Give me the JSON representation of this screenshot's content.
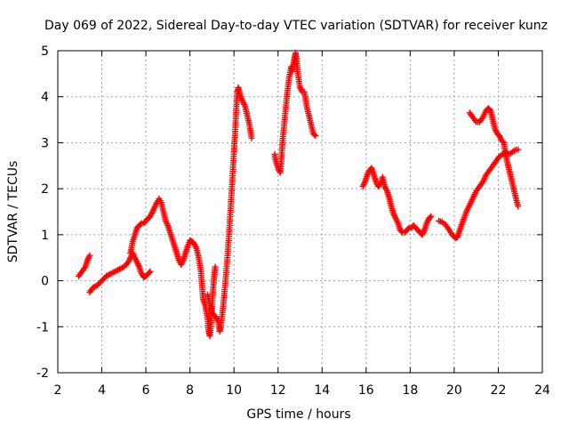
{
  "chart_data": {
    "type": "scatter",
    "title": "Day 069 of 2022, Sidereal Day-to-day VTEC variation (SDTVAR) for receiver kunz",
    "xlabel": "GPS time / hours",
    "ylabel": "SDTVAR / TECUs",
    "xlim": [
      2,
      24
    ],
    "ylim": [
      -2,
      5
    ],
    "xticks": [
      "2",
      "4",
      "6",
      "8",
      "10",
      "12",
      "14",
      "16",
      "18",
      "20",
      "22",
      "24"
    ],
    "yticks": [
      "-2",
      "-1",
      "0",
      "1",
      "2",
      "3",
      "4",
      "5"
    ],
    "grid": true,
    "marker": "plus",
    "series_color": "#ff0000",
    "segments": [
      {
        "points": [
          [
            2.95,
            0.1
          ],
          [
            3.1,
            0.2
          ],
          [
            3.25,
            0.3
          ],
          [
            3.35,
            0.45
          ],
          [
            3.45,
            0.55
          ]
        ]
      },
      {
        "points": [
          [
            3.45,
            -0.25
          ],
          [
            3.6,
            -0.15
          ],
          [
            3.8,
            -0.1
          ],
          [
            4.0,
            0.0
          ],
          [
            4.2,
            0.1
          ],
          [
            4.4,
            0.15
          ],
          [
            4.6,
            0.2
          ],
          [
            4.8,
            0.25
          ],
          [
            5.0,
            0.3
          ],
          [
            5.2,
            0.4
          ],
          [
            5.3,
            0.5
          ],
          [
            5.4,
            0.6
          ],
          [
            5.5,
            0.5
          ],
          [
            5.6,
            0.4
          ],
          [
            5.7,
            0.3
          ],
          [
            5.8,
            0.15
          ],
          [
            5.9,
            0.08
          ],
          [
            6.0,
            0.1
          ],
          [
            6.1,
            0.15
          ],
          [
            6.2,
            0.2
          ]
        ]
      },
      {
        "points": [
          [
            5.3,
            0.6
          ],
          [
            5.4,
            0.85
          ],
          [
            5.5,
            1.0
          ],
          [
            5.6,
            1.15
          ],
          [
            5.7,
            1.2
          ],
          [
            5.8,
            1.25
          ],
          [
            5.9,
            1.25
          ],
          [
            6.0,
            1.3
          ],
          [
            6.1,
            1.35
          ],
          [
            6.2,
            1.4
          ],
          [
            6.3,
            1.5
          ],
          [
            6.4,
            1.6
          ],
          [
            6.5,
            1.7
          ],
          [
            6.6,
            1.78
          ],
          [
            6.7,
            1.7
          ],
          [
            6.8,
            1.5
          ],
          [
            6.9,
            1.3
          ],
          [
            7.0,
            1.2
          ],
          [
            7.1,
            1.05
          ],
          [
            7.2,
            0.9
          ],
          [
            7.3,
            0.75
          ],
          [
            7.4,
            0.6
          ],
          [
            7.5,
            0.45
          ],
          [
            7.6,
            0.35
          ],
          [
            7.7,
            0.45
          ],
          [
            7.8,
            0.6
          ],
          [
            7.9,
            0.75
          ],
          [
            8.0,
            0.88
          ],
          [
            8.1,
            0.85
          ],
          [
            8.2,
            0.8
          ],
          [
            8.3,
            0.7
          ],
          [
            8.4,
            0.5
          ],
          [
            8.5,
            0.2
          ],
          [
            8.55,
            -0.1
          ],
          [
            8.6,
            -0.4
          ],
          [
            8.7,
            -0.55
          ],
          [
            8.8,
            -0.8
          ],
          [
            8.85,
            -1.1
          ],
          [
            8.9,
            -1.2
          ],
          [
            8.95,
            -1.0
          ],
          [
            9.0,
            -0.6
          ],
          [
            9.05,
            -0.2
          ],
          [
            9.1,
            0.1
          ],
          [
            9.15,
            0.3
          ]
        ]
      },
      {
        "points": [
          [
            8.8,
            -0.3
          ],
          [
            8.9,
            -0.5
          ],
          [
            9.0,
            -0.7
          ],
          [
            9.1,
            -0.75
          ],
          [
            9.2,
            -0.8
          ],
          [
            9.3,
            -0.9
          ],
          [
            9.35,
            -1.1
          ],
          [
            9.4,
            -1.0
          ],
          [
            9.5,
            -0.6
          ],
          [
            9.6,
            -0.1
          ],
          [
            9.7,
            0.5
          ],
          [
            9.8,
            1.2
          ],
          [
            9.9,
            2.0
          ],
          [
            10.0,
            2.8
          ],
          [
            10.05,
            3.2
          ],
          [
            10.1,
            3.7
          ],
          [
            10.15,
            4.1
          ],
          [
            10.2,
            4.2
          ],
          [
            10.3,
            4.0
          ],
          [
            10.4,
            3.9
          ],
          [
            10.5,
            3.8
          ],
          [
            10.6,
            3.6
          ],
          [
            10.7,
            3.4
          ],
          [
            10.8,
            3.1
          ]
        ]
      },
      {
        "points": [
          [
            11.85,
            2.75
          ],
          [
            11.9,
            2.6
          ],
          [
            12.0,
            2.45
          ],
          [
            12.1,
            2.35
          ],
          [
            12.15,
            2.6
          ],
          [
            12.2,
            3.0
          ],
          [
            12.3,
            3.5
          ],
          [
            12.4,
            4.0
          ],
          [
            12.5,
            4.4
          ],
          [
            12.6,
            4.65
          ],
          [
            12.65,
            4.55
          ],
          [
            12.7,
            4.7
          ],
          [
            12.75,
            4.85
          ],
          [
            12.8,
            4.95
          ],
          [
            12.85,
            4.8
          ],
          [
            12.9,
            4.5
          ],
          [
            13.0,
            4.2
          ],
          [
            13.1,
            4.1
          ],
          [
            13.2,
            4.1
          ],
          [
            13.3,
            3.8
          ],
          [
            13.4,
            3.6
          ],
          [
            13.5,
            3.4
          ],
          [
            13.6,
            3.2
          ],
          [
            13.7,
            3.15
          ]
        ]
      },
      {
        "points": [
          [
            15.85,
            2.05
          ],
          [
            15.95,
            2.15
          ],
          [
            16.05,
            2.3
          ],
          [
            16.15,
            2.4
          ],
          [
            16.25,
            2.45
          ],
          [
            16.35,
            2.3
          ],
          [
            16.45,
            2.15
          ],
          [
            16.55,
            2.05
          ],
          [
            16.65,
            2.1
          ],
          [
            16.75,
            2.25
          ],
          [
            16.85,
            2.05
          ],
          [
            16.95,
            1.95
          ],
          [
            17.05,
            1.8
          ],
          [
            17.15,
            1.6
          ],
          [
            17.25,
            1.45
          ],
          [
            17.35,
            1.35
          ],
          [
            17.45,
            1.25
          ],
          [
            17.55,
            1.1
          ],
          [
            17.65,
            1.05
          ],
          [
            17.75,
            1.05
          ],
          [
            17.85,
            1.1
          ],
          [
            17.95,
            1.15
          ],
          [
            18.05,
            1.15
          ],
          [
            18.15,
            1.2
          ],
          [
            18.25,
            1.15
          ],
          [
            18.35,
            1.1
          ],
          [
            18.45,
            1.05
          ],
          [
            18.55,
            1.0
          ],
          [
            18.65,
            1.1
          ],
          [
            18.75,
            1.25
          ],
          [
            18.85,
            1.35
          ],
          [
            18.95,
            1.4
          ]
        ]
      },
      {
        "points": [
          [
            19.3,
            1.3
          ],
          [
            19.45,
            1.28
          ],
          [
            19.6,
            1.22
          ],
          [
            19.75,
            1.12
          ],
          [
            19.9,
            1.0
          ],
          [
            20.05,
            0.93
          ],
          [
            20.15,
            0.95
          ],
          [
            20.25,
            1.1
          ],
          [
            20.4,
            1.3
          ],
          [
            20.55,
            1.5
          ],
          [
            20.7,
            1.65
          ],
          [
            20.85,
            1.8
          ],
          [
            21.0,
            1.95
          ],
          [
            21.15,
            2.05
          ],
          [
            21.3,
            2.15
          ],
          [
            21.45,
            2.3
          ],
          [
            21.6,
            2.4
          ],
          [
            21.75,
            2.5
          ],
          [
            21.9,
            2.6
          ],
          [
            22.05,
            2.7
          ],
          [
            22.2,
            2.75
          ],
          [
            22.35,
            2.8
          ],
          [
            22.5,
            2.75
          ],
          [
            22.65,
            2.8
          ],
          [
            22.8,
            2.85
          ],
          [
            22.9,
            2.85
          ]
        ]
      },
      {
        "points": [
          [
            20.7,
            3.65
          ],
          [
            20.85,
            3.55
          ],
          [
            21.0,
            3.45
          ],
          [
            21.15,
            3.45
          ],
          [
            21.3,
            3.55
          ],
          [
            21.45,
            3.7
          ],
          [
            21.55,
            3.75
          ],
          [
            21.65,
            3.7
          ],
          [
            21.75,
            3.5
          ],
          [
            21.85,
            3.3
          ],
          [
            21.95,
            3.2
          ],
          [
            22.05,
            3.15
          ],
          [
            22.15,
            3.05
          ],
          [
            22.25,
            3.0
          ],
          [
            22.35,
            2.7
          ],
          [
            22.45,
            2.5
          ],
          [
            22.55,
            2.3
          ],
          [
            22.65,
            2.1
          ],
          [
            22.75,
            1.9
          ],
          [
            22.85,
            1.7
          ],
          [
            22.9,
            1.62
          ]
        ]
      }
    ]
  }
}
